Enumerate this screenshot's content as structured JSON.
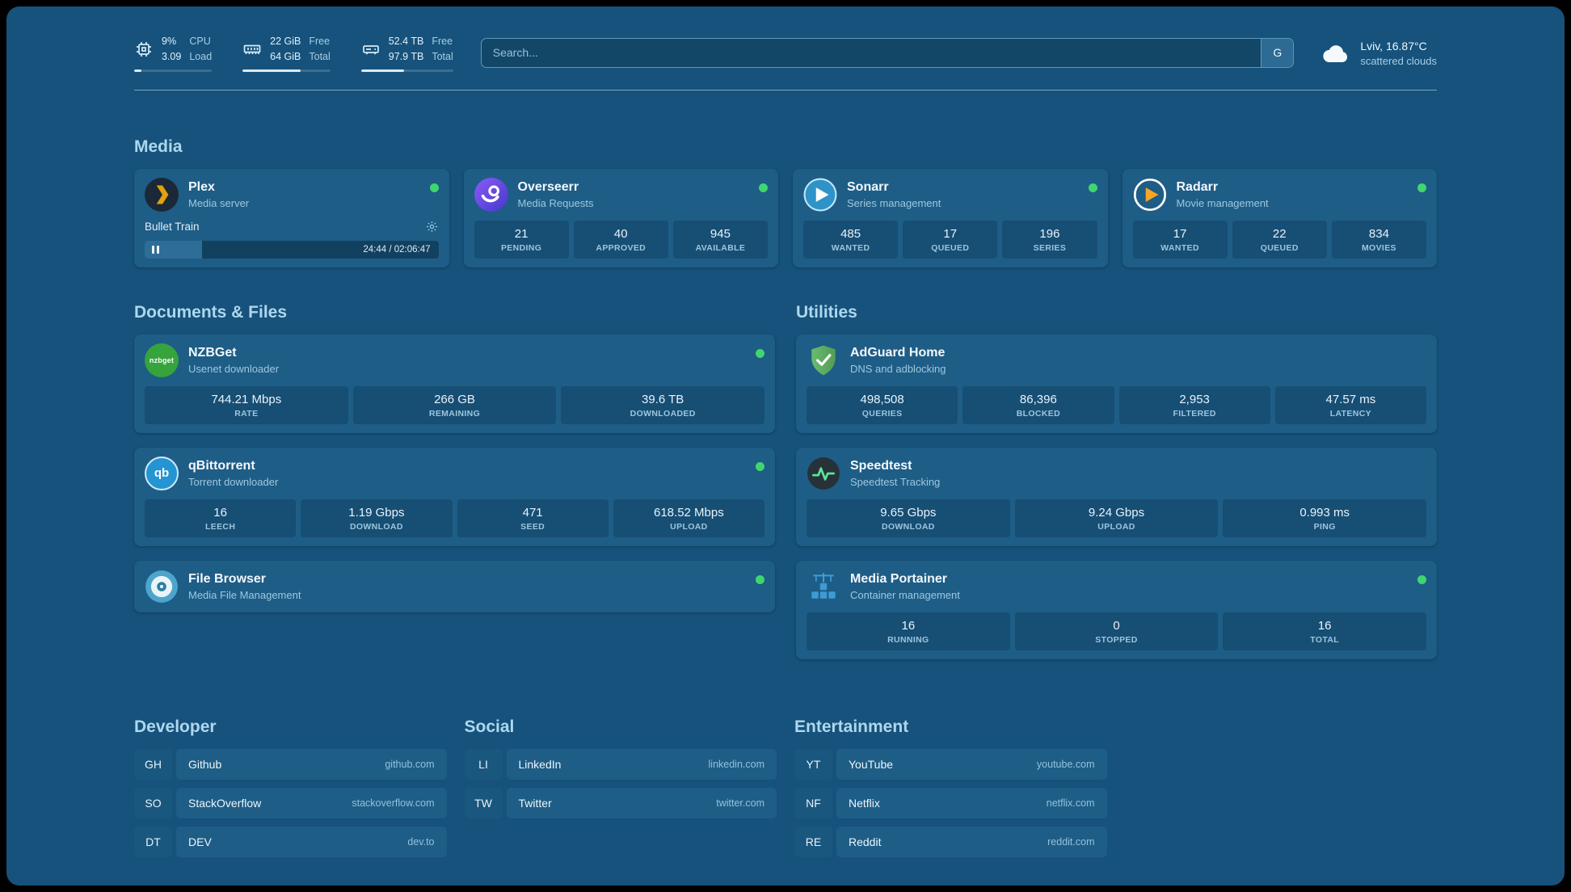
{
  "header": {
    "resources": [
      {
        "icon": "cpu-icon",
        "values": [
          "9%",
          "3.09"
        ],
        "labels": [
          "CPU",
          "Load"
        ],
        "bar_percent": 9
      },
      {
        "icon": "memory-icon",
        "values": [
          "22 GiB",
          "64 GiB"
        ],
        "labels": [
          "Free",
          "Total"
        ],
        "bar_percent": 66
      },
      {
        "icon": "disk-icon",
        "values": [
          "52.4 TB",
          "97.9 TB"
        ],
        "labels": [
          "Free",
          "Total"
        ],
        "bar_percent": 47
      }
    ],
    "search": {
      "placeholder": "Search...",
      "button_label": "G"
    },
    "weather": {
      "location": "Lviv, 16.87°C",
      "condition": "scattered clouds"
    }
  },
  "sections": {
    "media": "Media",
    "documents": "Documents & Files",
    "utilities": "Utilities"
  },
  "services": {
    "plex": {
      "name": "Plex",
      "subtitle": "Media server",
      "now_playing": "Bullet Train",
      "time": "24:44 / 02:06:47",
      "progress_percent": 19.5
    },
    "overseerr": {
      "name": "Overseerr",
      "subtitle": "Media Requests",
      "stats": [
        {
          "value": "21",
          "label": "PENDING"
        },
        {
          "value": "40",
          "label": "APPROVED"
        },
        {
          "value": "945",
          "label": "AVAILABLE"
        }
      ]
    },
    "sonarr": {
      "name": "Sonarr",
      "subtitle": "Series management",
      "stats": [
        {
          "value": "485",
          "label": "WANTED"
        },
        {
          "value": "17",
          "label": "QUEUED"
        },
        {
          "value": "196",
          "label": "SERIES"
        }
      ]
    },
    "radarr": {
      "name": "Radarr",
      "subtitle": "Movie management",
      "stats": [
        {
          "value": "17",
          "label": "WANTED"
        },
        {
          "value": "22",
          "label": "QUEUED"
        },
        {
          "value": "834",
          "label": "MOVIES"
        }
      ]
    },
    "nzbget": {
      "name": "NZBGet",
      "subtitle": "Usenet downloader",
      "stats": [
        {
          "value": "744.21 Mbps",
          "label": "RATE"
        },
        {
          "value": "266 GB",
          "label": "REMAINING"
        },
        {
          "value": "39.6 TB",
          "label": "DOWNLOADED"
        }
      ]
    },
    "qbittorrent": {
      "name": "qBittorrent",
      "subtitle": "Torrent downloader",
      "stats": [
        {
          "value": "16",
          "label": "LEECH"
        },
        {
          "value": "1.19 Gbps",
          "label": "DOWNLOAD"
        },
        {
          "value": "471",
          "label": "SEED"
        },
        {
          "value": "618.52 Mbps",
          "label": "UPLOAD"
        }
      ]
    },
    "filebrowser": {
      "name": "File Browser",
      "subtitle": "Media File Management"
    },
    "adguard": {
      "name": "AdGuard Home",
      "subtitle": "DNS and adblocking",
      "stats": [
        {
          "value": "498,508",
          "label": "QUERIES"
        },
        {
          "value": "86,396",
          "label": "BLOCKED"
        },
        {
          "value": "2,953",
          "label": "FILTERED"
        },
        {
          "value": "47.57 ms",
          "label": "LATENCY"
        }
      ]
    },
    "speedtest": {
      "name": "Speedtest",
      "subtitle": "Speedtest Tracking",
      "stats": [
        {
          "value": "9.65 Gbps",
          "label": "DOWNLOAD"
        },
        {
          "value": "9.24 Gbps",
          "label": "UPLOAD"
        },
        {
          "value": "0.993 ms",
          "label": "PING"
        }
      ]
    },
    "portainer": {
      "name": "Media Portainer",
      "subtitle": "Container management",
      "stats": [
        {
          "value": "16",
          "label": "RUNNING"
        },
        {
          "value": "0",
          "label": "STOPPED"
        },
        {
          "value": "16",
          "label": "TOTAL"
        }
      ]
    }
  },
  "bookmarks": [
    {
      "title": "Developer",
      "links": [
        {
          "abbr": "GH",
          "name": "Github",
          "url": "github.com"
        },
        {
          "abbr": "SO",
          "name": "StackOverflow",
          "url": "stackoverflow.com"
        },
        {
          "abbr": "DT",
          "name": "DEV",
          "url": "dev.to"
        }
      ]
    },
    {
      "title": "Social",
      "links": [
        {
          "abbr": "LI",
          "name": "LinkedIn",
          "url": "linkedin.com"
        },
        {
          "abbr": "TW",
          "name": "Twitter",
          "url": "twitter.com"
        }
      ]
    },
    {
      "title": "Entertainment",
      "links": [
        {
          "abbr": "YT",
          "name": "YouTube",
          "url": "youtube.com"
        },
        {
          "abbr": "NF",
          "name": "Netflix",
          "url": "netflix.com"
        },
        {
          "abbr": "RE",
          "name": "Reddit",
          "url": "reddit.com"
        }
      ]
    }
  ],
  "icons": {
    "nzbget_text": "nzbget",
    "qbittorrent_text": "qb"
  },
  "theme": {
    "panel_bg": "#16527b",
    "card_bg": "#1e5d86",
    "accent_green": "#3fd66e"
  }
}
